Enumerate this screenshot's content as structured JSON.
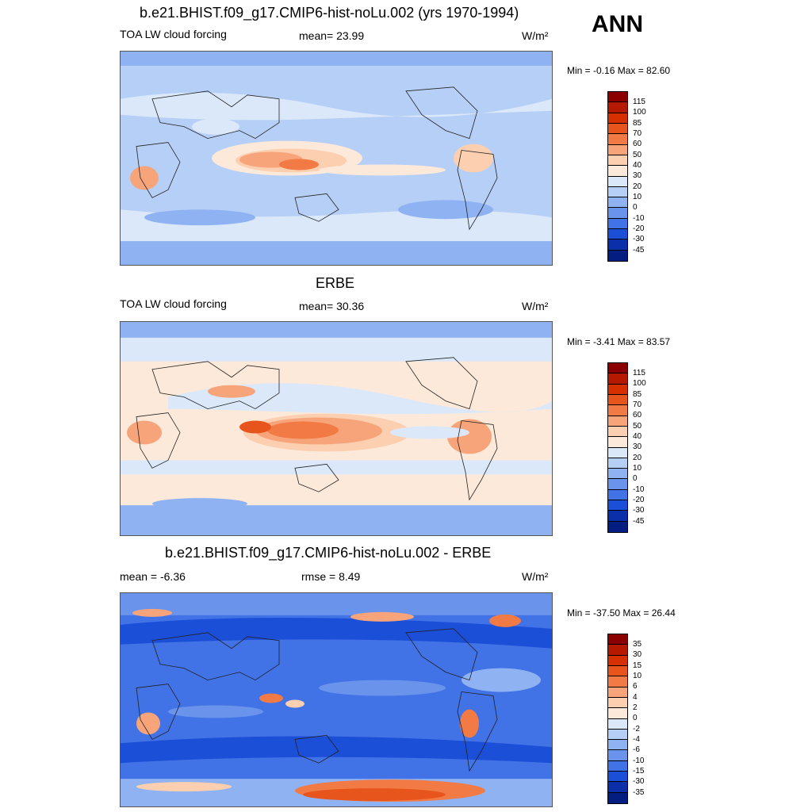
{
  "season": "ANN",
  "panels": [
    {
      "title": "b.e21.BHIST.f09_g17.CMIP6-hist-noLu.002 (yrs 1970-1994)",
      "left_label": "TOA LW cloud forcing",
      "mid_label": "mean=  23.99",
      "units": "W/m²",
      "minmax": "Min =  -0.16 Max =  82.60",
      "levels": [
        "115",
        "100",
        "85",
        "70",
        "60",
        "50",
        "40",
        "30",
        "20",
        "10",
        "0",
        "-10",
        "-20",
        "-30",
        "-45"
      ],
      "colors": [
        "#8b0000",
        "#b51a00",
        "#d63000",
        "#e8551c",
        "#f27a45",
        "#f7a47a",
        "#fbcfb0",
        "#fde9d9",
        "#dbe8fa",
        "#b6cff7",
        "#8fb2f2",
        "#6a93ec",
        "#4172e6",
        "#1c4fd8",
        "#0a2fa8",
        "#041d80"
      ]
    },
    {
      "title": "ERBE",
      "left_label": "TOA LW cloud forcing",
      "mid_label": "mean=  30.36",
      "units": "W/m²",
      "minmax": "Min =  -3.41 Max =  83.57",
      "levels": [
        "115",
        "100",
        "85",
        "70",
        "60",
        "50",
        "40",
        "30",
        "20",
        "10",
        "0",
        "-10",
        "-20",
        "-30",
        "-45"
      ],
      "colors": [
        "#8b0000",
        "#b51a00",
        "#d63000",
        "#e8551c",
        "#f27a45",
        "#f7a47a",
        "#fbcfb0",
        "#fde9d9",
        "#dbe8fa",
        "#b6cff7",
        "#8fb2f2",
        "#6a93ec",
        "#4172e6",
        "#1c4fd8",
        "#0a2fa8",
        "#041d80"
      ]
    },
    {
      "title": "b.e21.BHIST.f09_g17.CMIP6-hist-noLu.002 - ERBE",
      "left_label": "mean =  -6.36",
      "mid_label": "rmse =   8.49",
      "units": "W/m²",
      "minmax": "Min = -37.50 Max =  26.44",
      "levels": [
        "35",
        "30",
        "15",
        "10",
        "6",
        "4",
        "2",
        "0",
        "-2",
        "-4",
        "-6",
        "-10",
        "-15",
        "-30",
        "-35"
      ],
      "colors": [
        "#8b0000",
        "#b51a00",
        "#d63000",
        "#e8551c",
        "#f27a45",
        "#f7a47a",
        "#fbcfb0",
        "#fde9d9",
        "#dbe8fa",
        "#b6cff7",
        "#8fb2f2",
        "#6a93ec",
        "#4172e6",
        "#1c4fd8",
        "#0a2fa8",
        "#041d80"
      ]
    }
  ]
}
